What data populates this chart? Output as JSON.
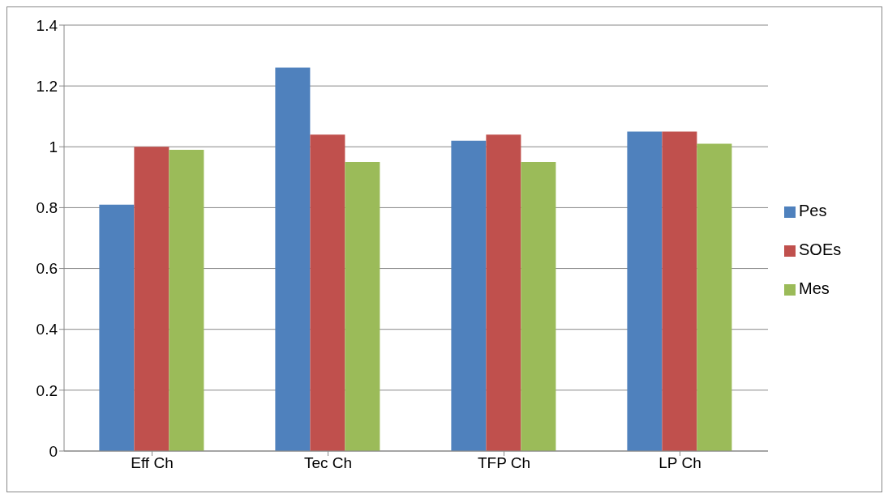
{
  "chart_data": {
    "type": "bar",
    "categories": [
      "Eff Ch",
      "Tec Ch",
      "TFP Ch",
      "LP Ch"
    ],
    "series": [
      {
        "name": "Pes",
        "color": "#4f81bd",
        "values": [
          0.81,
          1.26,
          1.02,
          1.05
        ]
      },
      {
        "name": "SOEs",
        "color": "#c0504d",
        "values": [
          1.0,
          1.04,
          1.04,
          1.05
        ]
      },
      {
        "name": "Mes",
        "color": "#9bbb59",
        "values": [
          0.99,
          0.95,
          0.95,
          1.01
        ]
      }
    ],
    "ylim": [
      0,
      1.4
    ],
    "yticks": [
      0,
      0.2,
      0.4,
      0.6,
      0.8,
      1,
      1.2,
      1.4
    ],
    "grid": "y",
    "legend": "right"
  }
}
